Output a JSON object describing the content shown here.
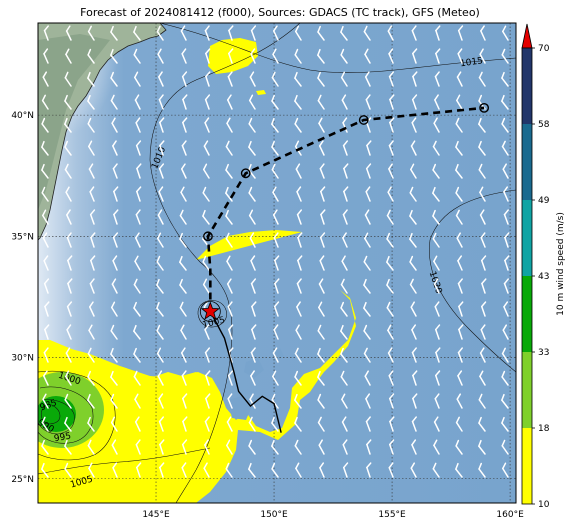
{
  "title": "Forecast of 2024081412 (f000), Sources: GDACS (TC track), GFS (Meteo)",
  "axes": {
    "lon_min": 140.0,
    "lon_max": 160.25,
    "lat_min": 24.0,
    "lat_max": 43.8,
    "x_ticks": [
      {
        "value": 145,
        "label": "145°E"
      },
      {
        "value": 150,
        "label": "150°E"
      },
      {
        "value": 155,
        "label": "155°E"
      },
      {
        "value": 160,
        "label": "160°E"
      }
    ],
    "y_ticks": [
      {
        "value": 25,
        "label": "25°N"
      },
      {
        "value": 30,
        "label": "30°N"
      },
      {
        "value": 35,
        "label": "35°N"
      },
      {
        "value": 40,
        "label": "40°N"
      }
    ]
  },
  "colorbar": {
    "label": "10 m wind speed (m/s)",
    "ticks": [
      "10",
      "18",
      "33",
      "43",
      "49",
      "58",
      "70"
    ],
    "colors": [
      "#ffff00",
      "#7fd02b",
      "#09a909",
      "#10a4a4",
      "#1a6a8f",
      "#22366a"
    ],
    "extend_color": "#e30000"
  },
  "isobar_labels": [
    "1015",
    "1010",
    "1020",
    "1005",
    "1000",
    "985",
    "990",
    "995",
    "1005"
  ],
  "track": {
    "past": [
      [
        150.3,
        26.9
      ],
      [
        150.0,
        28.1
      ],
      [
        149.5,
        28.4
      ],
      [
        149.0,
        28.0
      ],
      [
        148.5,
        28.6
      ],
      [
        148.3,
        29.4
      ],
      [
        147.9,
        30.8
      ],
      [
        147.3,
        31.9
      ]
    ],
    "current": [
      147.3,
      31.9
    ],
    "forecast": [
      [
        147.3,
        31.9
      ],
      [
        147.3,
        33.6
      ],
      [
        147.2,
        35.0
      ],
      [
        148.8,
        37.6
      ],
      [
        153.8,
        39.8
      ],
      [
        158.9,
        40.3
      ]
    ],
    "forecast_points": [
      [
        147.2,
        35.0
      ],
      [
        148.8,
        37.6
      ],
      [
        153.8,
        39.8
      ],
      [
        158.9,
        40.3
      ]
    ]
  }
}
